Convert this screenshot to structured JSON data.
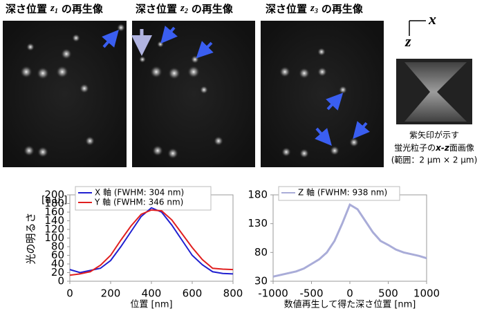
{
  "panels": [
    {
      "label": "深さ位置",
      "var": "z",
      "sub": "1",
      "suffix": "の再生像"
    },
    {
      "label": "深さ位置",
      "var": "z",
      "sub": "2",
      "suffix": "の再生像"
    },
    {
      "label": "深さ位置",
      "var": "z",
      "sub": "3",
      "suffix": "の再生像"
    }
  ],
  "axes_indicator": {
    "x": "x",
    "z": "z"
  },
  "caption": {
    "line1": "紫矢印が示す",
    "line2a": "蛍光粒子の",
    "line2b": "x-z",
    "line2c": "面画像",
    "line3": "(範囲：2 μm × 2 μm)"
  },
  "chart_data": [
    {
      "type": "line",
      "xlabel": "位置 [nm]",
      "ylabel": "光の明るさ",
      "yunit": "[a.u.]",
      "x": [
        0,
        50,
        100,
        150,
        200,
        250,
        300,
        350,
        400,
        450,
        500,
        550,
        600,
        650,
        700,
        750,
        800
      ],
      "series": [
        {
          "name": "X 軸 (FWHM: 304 nm)",
          "color": "#1f1fd0",
          "values": [
            27,
            20,
            25,
            30,
            48,
            80,
            115,
            150,
            170,
            160,
            130,
            95,
            60,
            38,
            22,
            18,
            17
          ]
        },
        {
          "name": "Y 軸 (FWHM: 346 nm)",
          "color": "#e01f1f",
          "values": [
            14,
            17,
            22,
            37,
            60,
            95,
            128,
            155,
            165,
            163,
            142,
            110,
            78,
            50,
            30,
            28,
            27
          ]
        }
      ],
      "xlim": [
        0,
        800
      ],
      "xticks": [
        0,
        200,
        400,
        600,
        800
      ],
      "ylim": [
        0,
        200
      ],
      "yticks": [
        0,
        20,
        40,
        60,
        80,
        100,
        120,
        140,
        160,
        180,
        200
      ]
    },
    {
      "type": "line",
      "xlabel": "数値再生して得た深さ位置 [nm]",
      "x": [
        -1000,
        -900,
        -800,
        -700,
        -600,
        -500,
        -400,
        -300,
        -200,
        -100,
        0,
        100,
        200,
        300,
        400,
        500,
        600,
        700,
        800,
        900,
        1000
      ],
      "series": [
        {
          "name": "Z 軸 (FWHM: 938 nm)",
          "color": "#a9acd8",
          "values": [
            38,
            41,
            44,
            47,
            52,
            60,
            68,
            80,
            100,
            130,
            163,
            155,
            135,
            115,
            100,
            93,
            85,
            80,
            77,
            74,
            70
          ]
        }
      ],
      "xlim": [
        -1000,
        1000
      ],
      "xticks": [
        -1000,
        -500,
        0,
        500,
        1000
      ],
      "ylim": [
        30,
        180
      ],
      "yticks": [
        30,
        80,
        130,
        180
      ]
    }
  ]
}
